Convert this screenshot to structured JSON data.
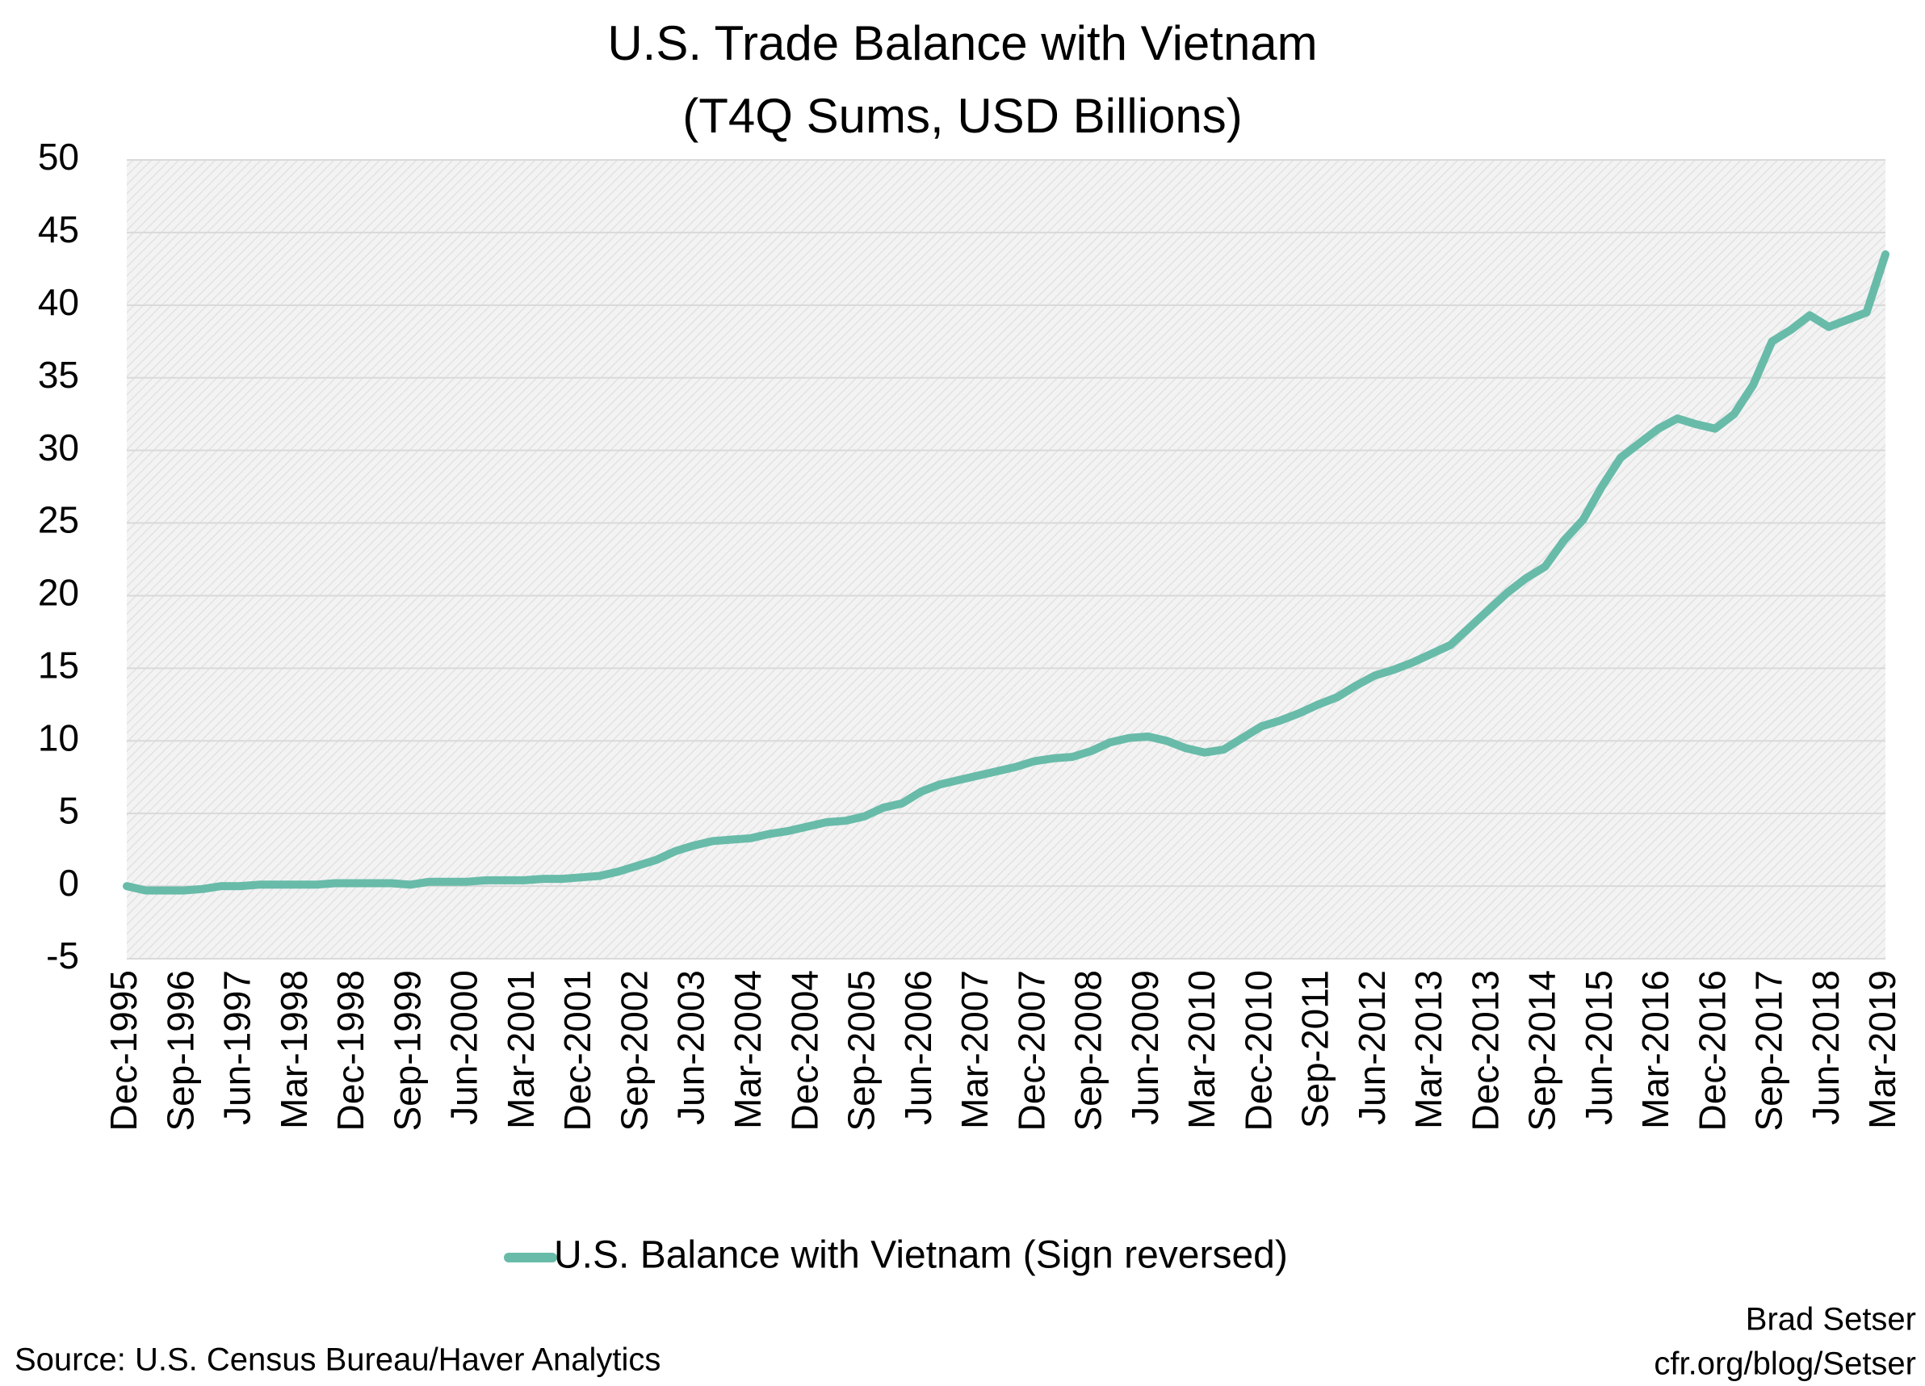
{
  "chart_data": {
    "type": "line",
    "title": "U.S. Trade Balance with Vietnam",
    "subtitle": "(T4Q Sums, USD Billions)",
    "categories": [
      "Dec-1995",
      null,
      null,
      "Sep-1996",
      null,
      null,
      "Jun-1997",
      null,
      null,
      "Mar-1998",
      null,
      null,
      "Dec-1998",
      null,
      null,
      "Sep-1999",
      null,
      null,
      "Jun-2000",
      null,
      null,
      "Mar-2001",
      null,
      null,
      "Dec-2001",
      null,
      null,
      "Sep-2002",
      null,
      null,
      "Jun-2003",
      null,
      null,
      "Mar-2004",
      null,
      null,
      "Dec-2004",
      null,
      null,
      "Sep-2005",
      null,
      null,
      "Jun-2006",
      null,
      null,
      "Mar-2007",
      null,
      null,
      "Dec-2007",
      null,
      null,
      "Sep-2008",
      null,
      null,
      "Jun-2009",
      null,
      null,
      "Mar-2010",
      null,
      null,
      "Dec-2010",
      null,
      null,
      "Sep-2011",
      null,
      null,
      "Jun-2012",
      null,
      null,
      "Mar-2013",
      null,
      null,
      "Dec-2013",
      null,
      null,
      "Sep-2014",
      null,
      null,
      "Jun-2015",
      null,
      null,
      "Mar-2016",
      null,
      null,
      "Dec-2016",
      null,
      null,
      "Sep-2017",
      null,
      null,
      "Jun-2018",
      null,
      null,
      "Mar-2019"
    ],
    "series": [
      {
        "name": "U.S. Balance with Vietnam (Sign reversed)",
        "color": "#68bba9",
        "values": [
          0,
          -0.3,
          -0.3,
          -0.3,
          -0.2,
          0,
          0,
          0.1,
          0.1,
          0.1,
          0.1,
          0.2,
          0.2,
          0.2,
          0.2,
          0.1,
          0.3,
          0.3,
          0.3,
          0.4,
          0.4,
          0.4,
          0.5,
          0.5,
          0.6,
          0.7,
          1.0,
          1.4,
          1.8,
          2.4,
          2.8,
          3.1,
          3.2,
          3.3,
          3.6,
          3.8,
          4.1,
          4.4,
          4.5,
          4.8,
          5.4,
          5.7,
          6.5,
          7.0,
          7.3,
          7.6,
          7.9,
          8.2,
          8.6,
          8.8,
          8.9,
          9.3,
          9.9,
          10.2,
          10.3,
          10.0,
          9.5,
          9.2,
          9.4,
          10.2,
          11.0,
          11.4,
          11.9,
          12.5,
          13.0,
          13.8,
          14.5,
          14.9,
          15.4,
          16.0,
          16.6,
          17.8,
          19.0,
          20.2,
          21.2,
          22.0,
          23.8,
          25.2,
          27.5,
          29.5,
          30.5,
          31.5,
          32.2,
          31.8,
          31.5,
          32.5,
          34.5,
          37.5,
          38.3,
          39.3,
          38.5,
          39.0,
          39.5,
          43.5
        ]
      }
    ],
    "ylim": [
      -5,
      50
    ],
    "yticks": [
      -5,
      0,
      5,
      10,
      15,
      20,
      25,
      30,
      35,
      40,
      45,
      50
    ],
    "grid": true,
    "source": "Source: U.S. Census Bureau/Haver Analytics",
    "credit": [
      "Brad Setser",
      "cfr.org/blog/Setser"
    ]
  }
}
